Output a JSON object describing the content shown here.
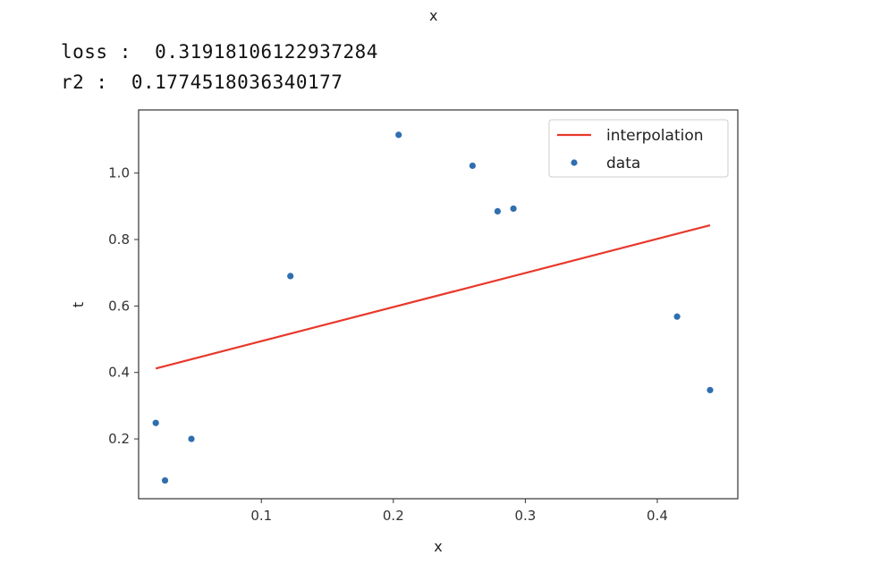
{
  "figure_title": "x",
  "output": {
    "loss_label": "loss : ",
    "loss_value": "0.31918106122937284",
    "r2_label": "r2 : ",
    "r2_value": "0.1774518036340177"
  },
  "chart_data": {
    "type": "scatter",
    "xlabel": "x",
    "ylabel": "t",
    "xlim": [
      0.007,
      0.461
    ],
    "ylim": [
      0.02,
      1.19
    ],
    "xticks": [
      0.1,
      0.2,
      0.3,
      0.4
    ],
    "xtick_labels": [
      "0.1",
      "0.2",
      "0.3",
      "0.4"
    ],
    "yticks": [
      0.2,
      0.4,
      0.6,
      0.8,
      1.0
    ],
    "ytick_labels": [
      "0.2",
      "0.4",
      "0.6",
      "0.8",
      "1.0"
    ],
    "legend_position": "top-right",
    "series": [
      {
        "name": "interpolation",
        "kind": "line",
        "color": "#e8382b",
        "x": [
          0.02,
          0.44
        ],
        "y": [
          0.412,
          0.843
        ]
      },
      {
        "name": "data",
        "kind": "scatter",
        "color": "#2f6fb0",
        "x": [
          0.02,
          0.027,
          0.047,
          0.122,
          0.204,
          0.26,
          0.279,
          0.291,
          0.415,
          0.44
        ],
        "y": [
          0.248,
          0.075,
          0.2,
          0.69,
          1.115,
          1.022,
          0.885,
          0.893,
          0.568,
          0.347
        ]
      }
    ]
  }
}
